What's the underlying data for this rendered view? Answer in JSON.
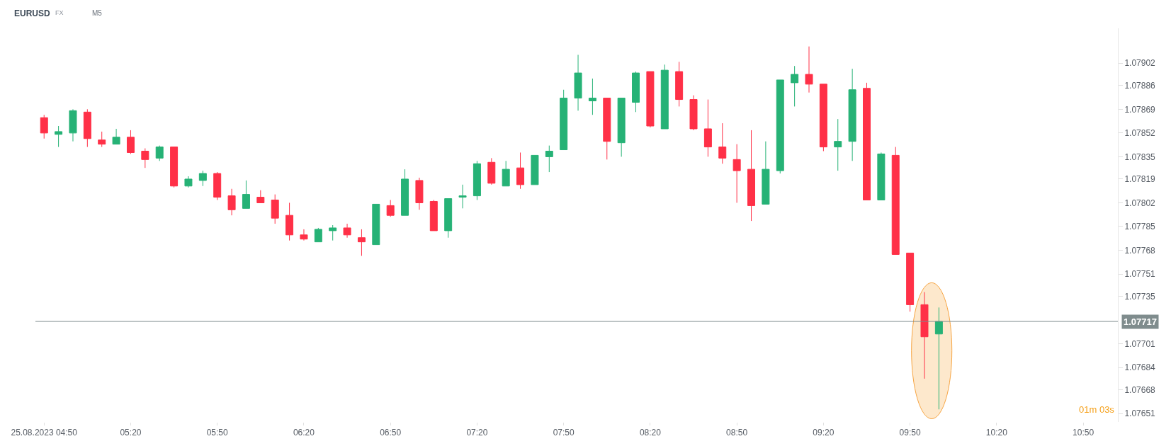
{
  "chart_data": {
    "type": "candlestick",
    "title": "EURUSD",
    "subtitle": "FX",
    "annotations": [
      "M5",
      "01m 03s"
    ],
    "x": [
      "2023-08-25T04:50",
      "2023-08-25T04:55",
      "2023-08-25T05:00",
      "2023-08-25T05:05",
      "2023-08-25T05:10",
      "2023-08-25T05:15",
      "2023-08-25T05:20",
      "2023-08-25T05:25",
      "2023-08-25T05:30",
      "2023-08-25T05:35",
      "2023-08-25T05:40",
      "2023-08-25T05:45",
      "2023-08-25T05:50",
      "2023-08-25T05:55",
      "2023-08-25T06:00",
      "2023-08-25T06:05",
      "2023-08-25T06:10",
      "2023-08-25T06:15",
      "2023-08-25T06:20",
      "2023-08-25T06:25",
      "2023-08-25T06:30",
      "2023-08-25T06:35",
      "2023-08-25T06:40",
      "2023-08-25T06:45",
      "2023-08-25T06:50",
      "2023-08-25T06:55",
      "2023-08-25T07:00",
      "2023-08-25T07:05",
      "2023-08-25T07:10",
      "2023-08-25T07:15",
      "2023-08-25T07:20",
      "2023-08-25T07:25",
      "2023-08-25T07:30",
      "2023-08-25T07:35",
      "2023-08-25T07:40",
      "2023-08-25T07:45",
      "2023-08-25T07:50",
      "2023-08-25T07:55",
      "2023-08-25T08:00",
      "2023-08-25T08:05",
      "2023-08-25T08:10",
      "2023-08-25T08:15",
      "2023-08-25T08:20",
      "2023-08-25T08:25",
      "2023-08-25T08:30",
      "2023-08-25T08:35",
      "2023-08-25T08:40",
      "2023-08-25T08:45",
      "2023-08-25T08:50",
      "2023-08-25T08:55",
      "2023-08-25T09:00",
      "2023-08-25T09:05",
      "2023-08-25T09:10",
      "2023-08-25T09:15",
      "2023-08-25T09:20",
      "2023-08-25T09:25",
      "2023-08-25T09:30",
      "2023-08-25T09:35",
      "2023-08-25T09:40",
      "2023-08-25T09:45",
      "2023-08-25T09:50",
      "2023-08-25T09:55",
      "2023-08-25T10:00"
    ],
    "ohlc": [
      [
        1.07863,
        1.07865,
        1.07848,
        1.07852
      ],
      [
        1.07851,
        1.07857,
        1.07842,
        1.07853
      ],
      [
        1.07852,
        1.07869,
        1.07846,
        1.07868
      ],
      [
        1.07867,
        1.07869,
        1.07842,
        1.07848
      ],
      [
        1.07847,
        1.07853,
        1.07842,
        1.07844
      ],
      [
        1.07844,
        1.07855,
        1.07844,
        1.07849
      ],
      [
        1.07849,
        1.07854,
        1.07837,
        1.07838
      ],
      [
        1.07839,
        1.07841,
        1.07827,
        1.07833
      ],
      [
        1.07834,
        1.07843,
        1.07832,
        1.07842
      ],
      [
        1.07842,
        1.07842,
        1.07813,
        1.07814
      ],
      [
        1.07814,
        1.07821,
        1.07813,
        1.07819
      ],
      [
        1.07818,
        1.07825,
        1.07814,
        1.07823
      ],
      [
        1.07823,
        1.07824,
        1.07804,
        1.07806
      ],
      [
        1.07807,
        1.07812,
        1.07793,
        1.07797
      ],
      [
        1.07798,
        1.07818,
        1.07798,
        1.07808
      ],
      [
        1.07806,
        1.07811,
        1.07802,
        1.07802
      ],
      [
        1.07804,
        1.07808,
        1.07787,
        1.07791
      ],
      [
        1.07793,
        1.07802,
        1.07775,
        1.07779
      ],
      [
        1.07779,
        1.07783,
        1.07775,
        1.07776
      ],
      [
        1.07774,
        1.07784,
        1.07774,
        1.07783
      ],
      [
        1.07782,
        1.07786,
        1.07775,
        1.07784
      ],
      [
        1.07784,
        1.07787,
        1.07777,
        1.07779
      ],
      [
        1.07777,
        1.07783,
        1.07764,
        1.07774
      ],
      [
        1.07772,
        1.07801,
        1.07772,
        1.07801
      ],
      [
        1.078,
        1.07804,
        1.07792,
        1.07793
      ],
      [
        1.07793,
        1.07826,
        1.07793,
        1.07819
      ],
      [
        1.07818,
        1.0782,
        1.07797,
        1.07802
      ],
      [
        1.07803,
        1.07804,
        1.07782,
        1.07782
      ],
      [
        1.07782,
        1.07805,
        1.07777,
        1.07805
      ],
      [
        1.07806,
        1.07815,
        1.07798,
        1.07807
      ],
      [
        1.07807,
        1.07832,
        1.07804,
        1.0783
      ],
      [
        1.07831,
        1.07834,
        1.07815,
        1.07816
      ],
      [
        1.07814,
        1.07832,
        1.07814,
        1.07826
      ],
      [
        1.07827,
        1.07838,
        1.07812,
        1.07815
      ],
      [
        1.07815,
        1.07836,
        1.07815,
        1.07836
      ],
      [
        1.07835,
        1.07843,
        1.07824,
        1.07839
      ],
      [
        1.0784,
        1.07883,
        1.0784,
        1.07877
      ],
      [
        1.07877,
        1.07908,
        1.07868,
        1.07895
      ],
      [
        1.07875,
        1.07891,
        1.07865,
        1.07877
      ],
      [
        1.07877,
        1.07877,
        1.07833,
        1.07846
      ],
      [
        1.07845,
        1.07877,
        1.07835,
        1.07877
      ],
      [
        1.07874,
        1.07896,
        1.07867,
        1.07895
      ],
      [
        1.07896,
        1.07896,
        1.07856,
        1.07857
      ],
      [
        1.07855,
        1.07901,
        1.07855,
        1.07897
      ],
      [
        1.07896,
        1.07903,
        1.07871,
        1.07876
      ],
      [
        1.07876,
        1.07879,
        1.07854,
        1.07855
      ],
      [
        1.07855,
        1.07876,
        1.07835,
        1.07842
      ],
      [
        1.07842,
        1.07859,
        1.0783,
        1.07834
      ],
      [
        1.07833,
        1.07844,
        1.07802,
        1.07825
      ],
      [
        1.07826,
        1.07854,
        1.07789,
        1.078
      ],
      [
        1.07801,
        1.07846,
        1.07801,
        1.07826
      ],
      [
        1.07825,
        1.0789,
        1.07823,
        1.0789
      ],
      [
        1.07888,
        1.079,
        1.07871,
        1.07894
      ],
      [
        1.07894,
        1.07914,
        1.07881,
        1.07887
      ],
      [
        1.07887,
        1.07887,
        1.07839,
        1.07842
      ],
      [
        1.07842,
        1.07862,
        1.07825,
        1.07846
      ],
      [
        1.07846,
        1.07898,
        1.07832,
        1.07883
      ],
      [
        1.07884,
        1.07888,
        1.07804,
        1.07804
      ],
      [
        1.07804,
        1.07838,
        1.07804,
        1.07837
      ],
      [
        1.07836,
        1.07842,
        1.07765,
        1.07765
      ],
      [
        1.07766,
        1.07766,
        1.07724,
        1.07729
      ],
      [
        1.07729,
        1.07738,
        1.07676,
        1.07706
      ],
      [
        1.07708,
        1.07727,
        1.07654,
        1.07717
      ]
    ],
    "colors": [
      "#ff3047",
      "#26b276",
      "#26b276",
      "#ff3047",
      "#ff3047",
      "#26b276",
      "#ff3047",
      "#ff3047",
      "#26b276",
      "#ff3047",
      "#26b276",
      "#26b276",
      "#ff3047",
      "#ff3047",
      "#26b276",
      "#ff3047",
      "#ff3047",
      "#ff3047",
      "#ff3047",
      "#26b276",
      "#26b276",
      "#ff3047",
      "#ff3047",
      "#26b276",
      "#ff3047",
      "#26b276",
      "#ff3047",
      "#ff3047",
      "#26b276",
      "#26b276",
      "#26b276",
      "#ff3047",
      "#26b276",
      "#ff3047",
      "#26b276",
      "#26b276",
      "#26b276",
      "#26b276",
      "#26b276",
      "#ff3047",
      "#26b276",
      "#26b276",
      "#ff3047",
      "#26b276",
      "#ff3047",
      "#ff3047",
      "#ff3047",
      "#ff3047",
      "#ff3047",
      "#ff3047",
      "#26b276",
      "#26b276",
      "#26b276",
      "#ff3047",
      "#ff3047",
      "#26b276",
      "#26b276",
      "#ff3047",
      "#26b276",
      "#ff3047",
      "#ff3047",
      "#ff3047",
      "#26b276"
    ],
    "xlim": [
      "2023-08-25T04:47",
      "2023-08-25T11:02"
    ],
    "xticks": [
      {
        "value": "2023-08-25T04:50",
        "label": "25.08.2023 04:50"
      },
      {
        "value": "2023-08-25T05:20",
        "label": "05:20"
      },
      {
        "value": "2023-08-25T05:50",
        "label": "05:50"
      },
      {
        "value": "2023-08-25T06:20",
        "label": "06:20"
      },
      {
        "value": "2023-08-25T06:50",
        "label": "06:50"
      },
      {
        "value": "2023-08-25T07:20",
        "label": "07:20"
      },
      {
        "value": "2023-08-25T07:50",
        "label": "07:50"
      },
      {
        "value": "2023-08-25T08:20",
        "label": "08:20"
      },
      {
        "value": "2023-08-25T08:50",
        "label": "08:50"
      },
      {
        "value": "2023-08-25T09:20",
        "label": "09:20"
      },
      {
        "value": "2023-08-25T09:50",
        "label": "09:50"
      },
      {
        "value": "2023-08-25T10:20",
        "label": "10:20"
      },
      {
        "value": "2023-08-25T10:50",
        "label": "10:50"
      }
    ],
    "ylim": [
      1.07645,
      1.07927
    ],
    "yticks": [
      1.07651,
      1.07668,
      1.07684,
      1.07701,
      1.07735,
      1.07751,
      1.07768,
      1.07785,
      1.07802,
      1.07819,
      1.07835,
      1.07852,
      1.07869,
      1.07886,
      1.07902
    ],
    "ref_lines": [
      {
        "axis": "y",
        "value": 1.07717,
        "label": "1.07717",
        "color": "#7f8c8d",
        "line_style": "solid"
      }
    ],
    "grid": false
  }
}
